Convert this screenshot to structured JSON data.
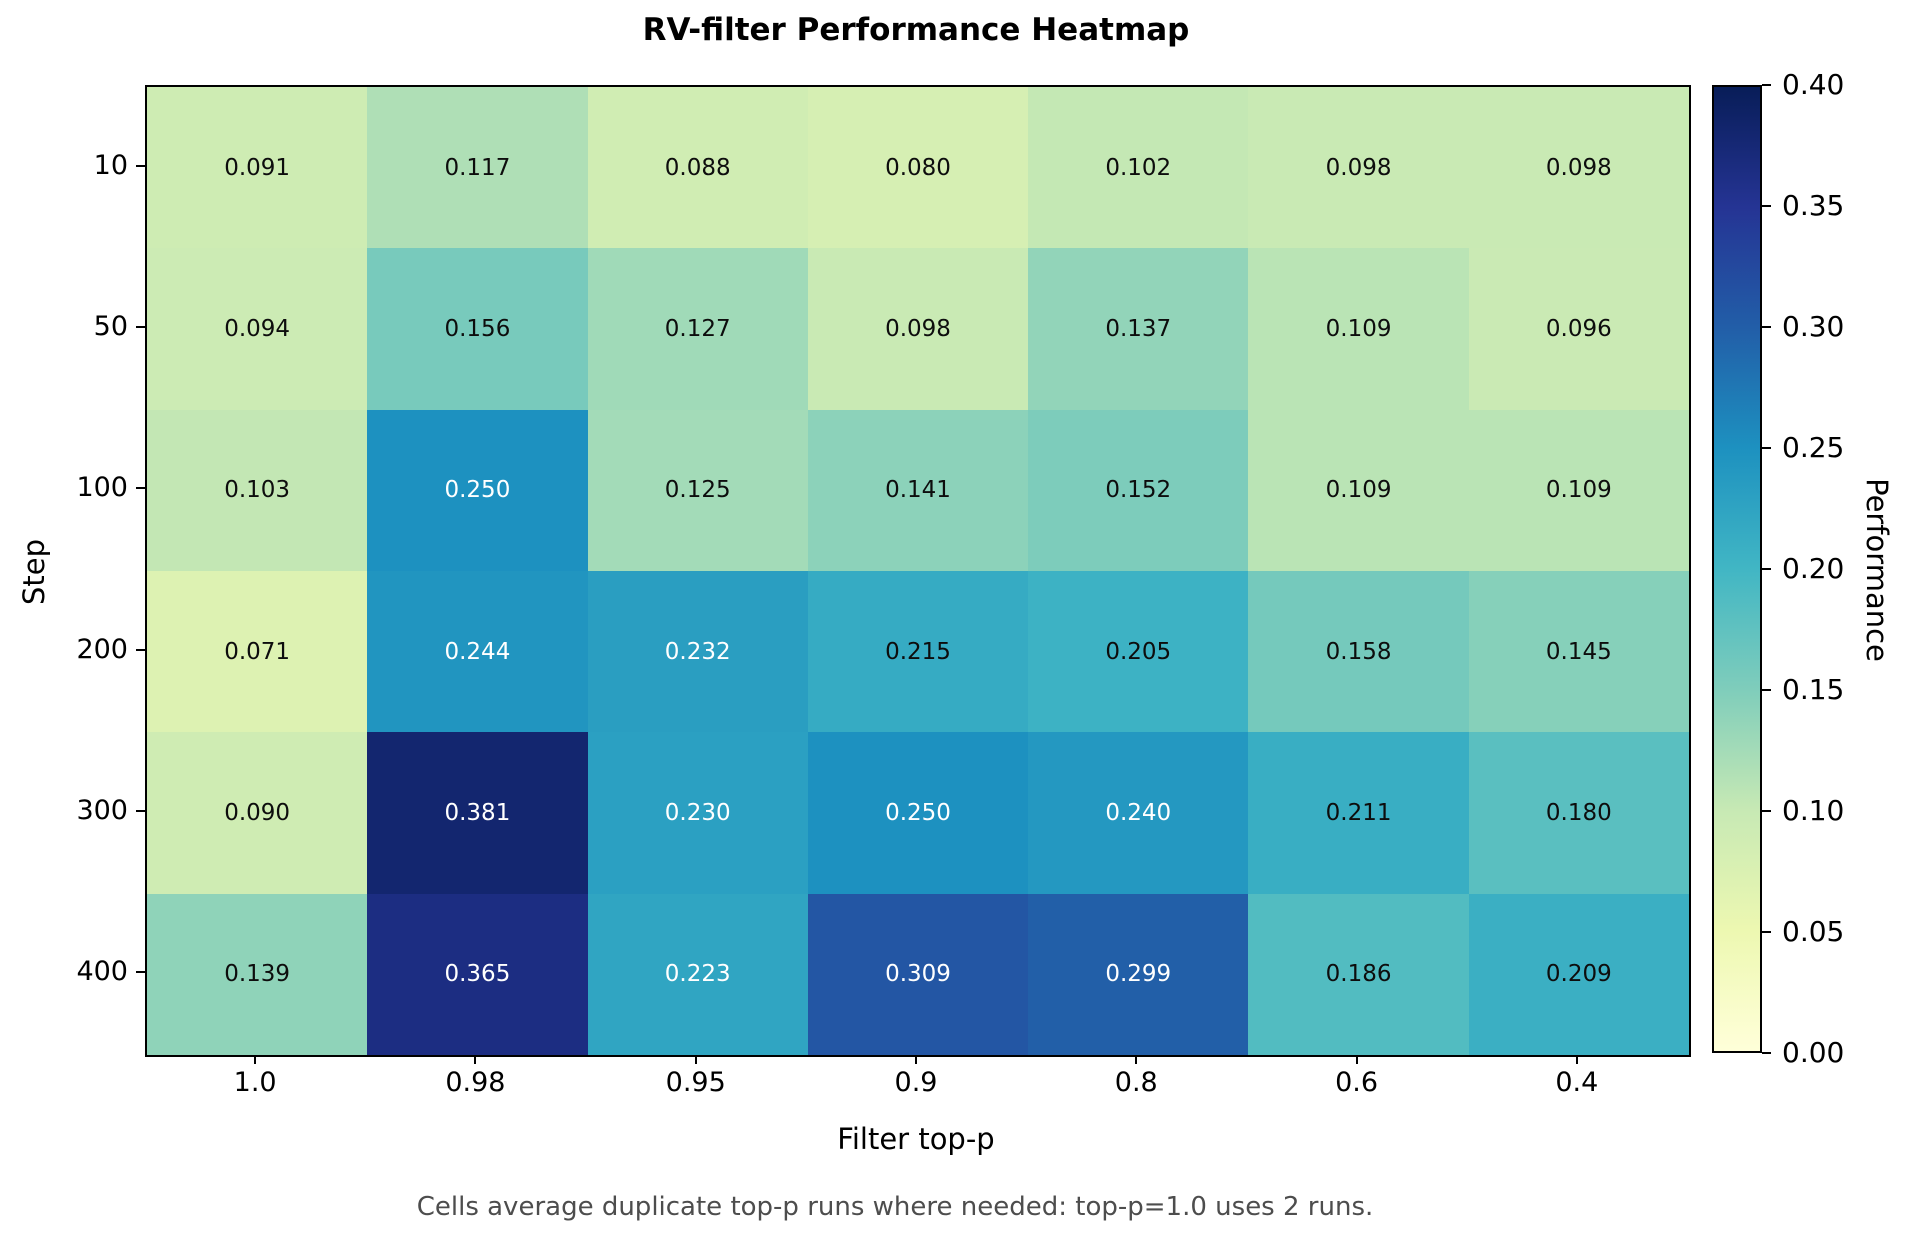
{
  "title": "RV-filter Performance Heatmap",
  "caption": "Cells average duplicate top-p runs where needed: top-p=1.0 uses 2 runs.",
  "chart_data": {
    "type": "heatmap",
    "title": "RV-filter Performance Heatmap",
    "xlabel": "Filter top-p",
    "ylabel": "Step",
    "x_categories": [
      "1.0",
      "0.98",
      "0.95",
      "0.9",
      "0.8",
      "0.6",
      "0.4"
    ],
    "y_categories": [
      "10",
      "50",
      "100",
      "200",
      "300",
      "400"
    ],
    "values": [
      [
        0.091,
        0.117,
        0.088,
        0.08,
        0.102,
        0.098,
        0.098
      ],
      [
        0.094,
        0.156,
        0.127,
        0.098,
        0.137,
        0.109,
        0.096
      ],
      [
        0.103,
        0.25,
        0.125,
        0.141,
        0.152,
        0.109,
        0.109
      ],
      [
        0.071,
        0.244,
        0.232,
        0.215,
        0.205,
        0.158,
        0.145
      ],
      [
        0.09,
        0.381,
        0.23,
        0.25,
        0.24,
        0.211,
        0.18
      ],
      [
        0.139,
        0.365,
        0.223,
        0.309,
        0.299,
        0.186,
        0.209
      ]
    ],
    "value_decimals": 3,
    "grid": false,
    "colorbar": {
      "label": "Performance",
      "vmin": 0.0,
      "vmax": 0.4,
      "tick_labels_top_to_bottom": [
        "0.40",
        "0.35",
        "0.30",
        "0.25",
        "0.20",
        "0.15",
        "0.10",
        "0.05",
        "0.00"
      ],
      "position": "right"
    },
    "colormap": {
      "name": "YlGnBu",
      "anchors": [
        "#ffffd9",
        "#edf8b1",
        "#c7e9b4",
        "#7fcdbb",
        "#41b6c4",
        "#1d91c0",
        "#225ea8",
        "#253494",
        "#081d58"
      ]
    },
    "annotation_dark_text": "#0d0d0d",
    "annotation_light_text": "#ffffff",
    "light_text_threshold_value": 0.22
  },
  "colors": {
    "background": "#ffffff",
    "axis": "#000000",
    "caption_text": "#4d4d4d"
  }
}
